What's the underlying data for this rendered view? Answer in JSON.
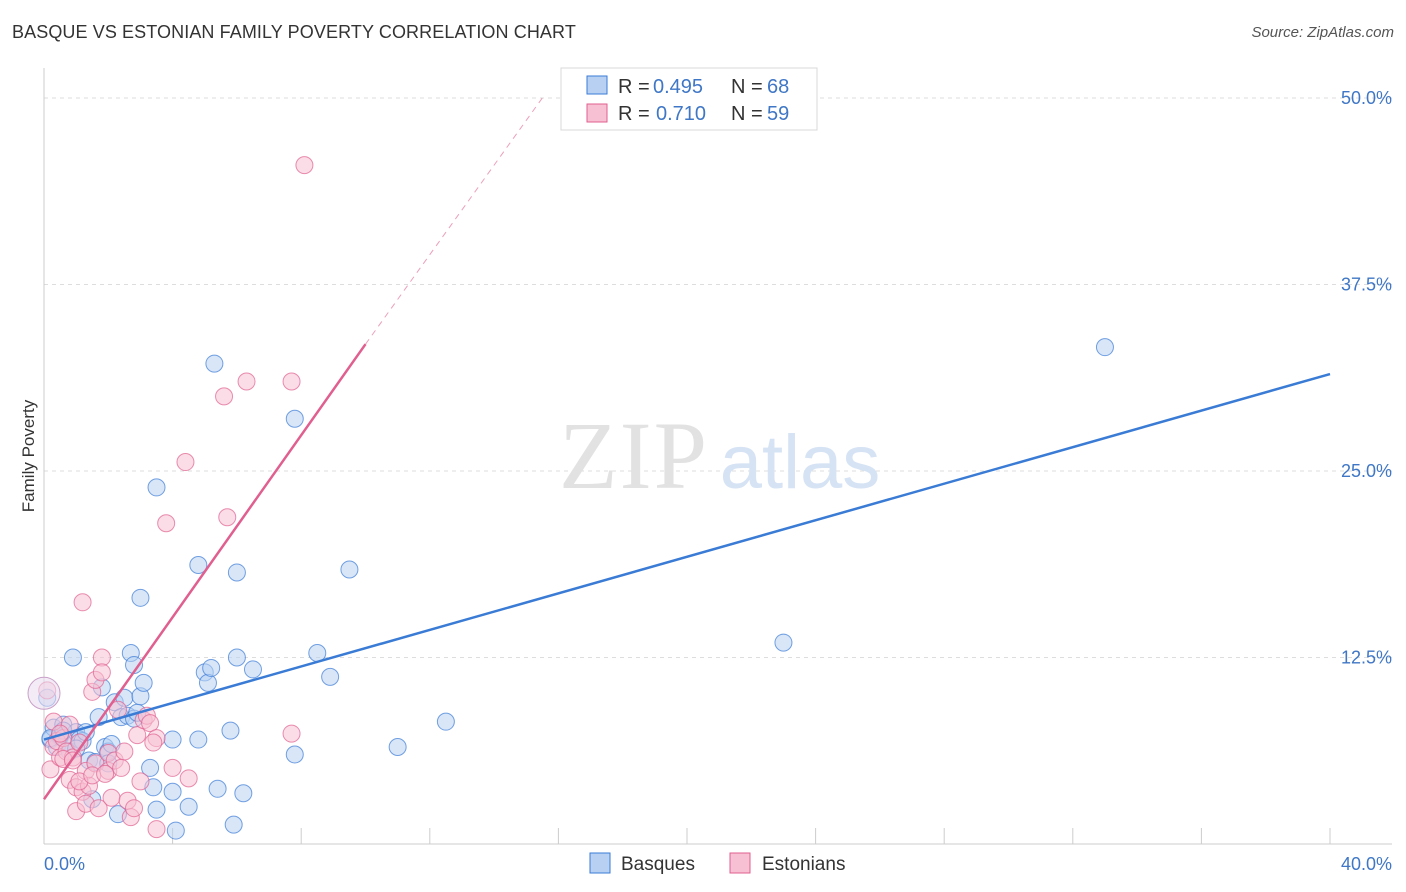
{
  "title": "BASQUE VS ESTONIAN FAMILY POVERTY CORRELATION CHART",
  "source": "Source: ZipAtlas.com",
  "watermark": {
    "zip": "ZIP",
    "atlas": "atlas"
  },
  "chart_data": {
    "type": "scatter",
    "ylabel": "Family Poverty",
    "xlim": [
      0,
      40
    ],
    "ylim": [
      0,
      50
    ],
    "x_tick_labels": [
      "0.0%",
      "40.0%"
    ],
    "y_ticks": [
      12.5,
      25.0,
      37.5,
      50.0
    ],
    "y_tick_labels": [
      "12.5%",
      "25.0%",
      "37.5%",
      "50.0%"
    ],
    "grid": true,
    "legend_position": "top-center",
    "series": [
      {
        "name": "Basques",
        "color": "#3a7bd5",
        "fill": "#b8d1f3",
        "R": "0.495",
        "N": "68",
        "trend": {
          "x0": 0,
          "y0": 7.0,
          "x1": 40,
          "y1": 31.5,
          "dashed_to": null
        },
        "points": [
          [
            0.2,
            7.0
          ],
          [
            0.3,
            7.8
          ],
          [
            0.4,
            6.5
          ],
          [
            0.5,
            7.2
          ],
          [
            0.6,
            8.0
          ],
          [
            0.7,
            6.8
          ],
          [
            0.8,
            6.2
          ],
          [
            0.9,
            12.5
          ],
          [
            1.0,
            7.5
          ],
          [
            1.1,
            7.0
          ],
          [
            1.2,
            6.9
          ],
          [
            1.3,
            7.5
          ],
          [
            1.4,
            5.6
          ],
          [
            1.5,
            3.0
          ],
          [
            1.6,
            5.5
          ],
          [
            1.7,
            8.5
          ],
          [
            1.8,
            10.5
          ],
          [
            1.9,
            6.5
          ],
          [
            2.0,
            6.2
          ],
          [
            2.1,
            6.7
          ],
          [
            2.2,
            9.5
          ],
          [
            2.3,
            2.0
          ],
          [
            2.4,
            8.5
          ],
          [
            2.5,
            9.8
          ],
          [
            2.6,
            8.6
          ],
          [
            2.7,
            12.8
          ],
          [
            2.8,
            8.4
          ],
          [
            2.8,
            12.0
          ],
          [
            2.9,
            8.8
          ],
          [
            3.0,
            16.5
          ],
          [
            3.0,
            9.9
          ],
          [
            3.1,
            10.8
          ],
          [
            3.3,
            5.1
          ],
          [
            3.4,
            3.8
          ],
          [
            3.5,
            23.9
          ],
          [
            3.5,
            2.3
          ],
          [
            4.0,
            3.5
          ],
          [
            4.0,
            7.0
          ],
          [
            4.1,
            0.9
          ],
          [
            4.5,
            2.5
          ],
          [
            4.8,
            7.0
          ],
          [
            4.8,
            18.7
          ],
          [
            5.0,
            11.5
          ],
          [
            5.1,
            10.8
          ],
          [
            5.2,
            11.8
          ],
          [
            5.3,
            32.2
          ],
          [
            5.4,
            3.7
          ],
          [
            5.8,
            7.6
          ],
          [
            5.9,
            1.3
          ],
          [
            6.0,
            12.5
          ],
          [
            6.0,
            18.2
          ],
          [
            6.2,
            3.4
          ],
          [
            6.5,
            11.7
          ],
          [
            7.8,
            6.0
          ],
          [
            7.8,
            28.5
          ],
          [
            8.5,
            12.8
          ],
          [
            8.9,
            11.2
          ],
          [
            9.5,
            18.4
          ],
          [
            11.0,
            6.5
          ],
          [
            12.5,
            8.2
          ],
          [
            23.0,
            13.5
          ],
          [
            33.0,
            33.3
          ],
          [
            0.1,
            9.8
          ],
          [
            0.2,
            7.1
          ],
          [
            0.5,
            7.3
          ],
          [
            1.0,
            6.4
          ],
          [
            2.0,
            5.4
          ],
          [
            0.6,
            7.6
          ]
        ]
      },
      {
        "name": "Estonians",
        "color": "#e05f8f",
        "fill": "#f7c1d3",
        "R": "0.710",
        "N": "59",
        "trend": {
          "x0": 0,
          "y0": 3.0,
          "x1": 10,
          "y1": 33.5,
          "dashed_to": {
            "x": 15.5,
            "y": 50
          }
        },
        "points": [
          [
            0.2,
            5.0
          ],
          [
            0.3,
            6.5
          ],
          [
            0.3,
            8.2
          ],
          [
            0.4,
            6.9
          ],
          [
            0.5,
            5.8
          ],
          [
            0.6,
            7.1
          ],
          [
            0.7,
            6.2
          ],
          [
            0.8,
            4.3
          ],
          [
            0.8,
            8.0
          ],
          [
            0.9,
            5.8
          ],
          [
            1.0,
            2.2
          ],
          [
            1.0,
            3.8
          ],
          [
            1.1,
            6.8
          ],
          [
            1.2,
            3.5
          ],
          [
            1.3,
            2.7
          ],
          [
            1.3,
            4.9
          ],
          [
            1.4,
            3.9
          ],
          [
            1.5,
            10.2
          ],
          [
            1.6,
            11.0
          ],
          [
            1.6,
            5.4
          ],
          [
            1.7,
            2.4
          ],
          [
            1.8,
            12.5
          ],
          [
            1.8,
            11.5
          ],
          [
            2.0,
            4.9
          ],
          [
            2.0,
            6.1
          ],
          [
            2.1,
            3.1
          ],
          [
            2.2,
            5.6
          ],
          [
            2.3,
            9.0
          ],
          [
            2.5,
            6.2
          ],
          [
            2.6,
            2.9
          ],
          [
            2.7,
            1.8
          ],
          [
            2.8,
            2.4
          ],
          [
            2.9,
            7.3
          ],
          [
            3.0,
            4.2
          ],
          [
            3.1,
            8.3
          ],
          [
            3.2,
            8.6
          ],
          [
            3.3,
            8.1
          ],
          [
            3.5,
            7.1
          ],
          [
            3.5,
            1.0
          ],
          [
            3.8,
            21.5
          ],
          [
            4.0,
            5.1
          ],
          [
            4.4,
            25.6
          ],
          [
            4.5,
            4.4
          ],
          [
            5.6,
            30.0
          ],
          [
            5.7,
            21.9
          ],
          [
            6.3,
            31.0
          ],
          [
            7.7,
            31.0
          ],
          [
            7.7,
            7.4
          ],
          [
            8.1,
            45.5
          ],
          [
            0.1,
            10.3
          ],
          [
            0.6,
            5.7
          ],
          [
            1.1,
            4.2
          ],
          [
            1.2,
            16.2
          ],
          [
            1.5,
            4.6
          ],
          [
            0.5,
            7.4
          ],
          [
            0.9,
            5.6
          ],
          [
            2.4,
            5.1
          ],
          [
            1.9,
            4.7
          ],
          [
            3.4,
            6.8
          ]
        ]
      }
    ]
  },
  "legend": {
    "r_label": "R =",
    "n_label": "N ="
  }
}
